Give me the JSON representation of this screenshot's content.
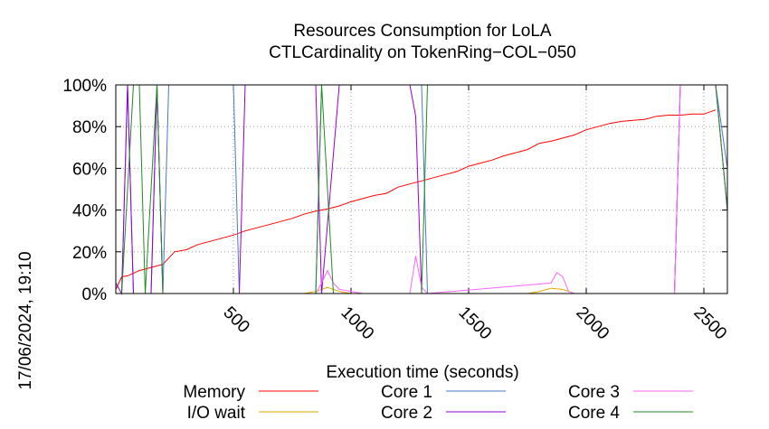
{
  "chart_data": {
    "type": "line",
    "title": "Resources Consumption for LoLA",
    "subtitle": "CTLCardinality on TokenRing−COL−050",
    "xlabel": "Execution time (seconds)",
    "ylabel": "",
    "side_label": "17/06/2024, 19:10",
    "xlim": [
      0,
      2600
    ],
    "ylim": [
      0,
      100
    ],
    "x_ticks": [
      500,
      1000,
      1500,
      2000,
      2500
    ],
    "y_ticks": [
      0,
      20,
      40,
      60,
      80,
      100
    ],
    "y_tick_labels": [
      "0%",
      "20%",
      "40%",
      "60%",
      "80%",
      "100%"
    ],
    "grid": true,
    "legend_position": "bottom",
    "series": [
      {
        "name": "Memory",
        "color": "#ff0000",
        "points": [
          [
            0,
            2
          ],
          [
            25,
            8
          ],
          [
            50,
            8.5
          ],
          [
            100,
            11
          ],
          [
            150,
            12.5
          ],
          [
            200,
            14
          ],
          [
            250,
            20
          ],
          [
            300,
            21
          ],
          [
            350,
            23.5
          ],
          [
            400,
            25
          ],
          [
            450,
            26.5
          ],
          [
            500,
            28
          ],
          [
            550,
            30
          ],
          [
            600,
            31.5
          ],
          [
            650,
            33
          ],
          [
            700,
            34.5
          ],
          [
            750,
            36
          ],
          [
            800,
            38
          ],
          [
            850,
            39.5
          ],
          [
            900,
            40.5
          ],
          [
            950,
            42
          ],
          [
            1000,
            44
          ],
          [
            1050,
            45.5
          ],
          [
            1100,
            47
          ],
          [
            1150,
            48
          ],
          [
            1200,
            51
          ],
          [
            1250,
            52.5
          ],
          [
            1300,
            54
          ],
          [
            1350,
            55.5
          ],
          [
            1400,
            57
          ],
          [
            1450,
            58.5
          ],
          [
            1500,
            61
          ],
          [
            1550,
            62.5
          ],
          [
            1600,
            64
          ],
          [
            1650,
            66
          ],
          [
            1700,
            67.5
          ],
          [
            1750,
            69
          ],
          [
            1800,
            72
          ],
          [
            1850,
            73
          ],
          [
            1900,
            74.5
          ],
          [
            1950,
            76
          ],
          [
            2000,
            78.5
          ],
          [
            2050,
            80
          ],
          [
            2100,
            81.5
          ],
          [
            2150,
            82.5
          ],
          [
            2200,
            83
          ],
          [
            2250,
            83.5
          ],
          [
            2300,
            85
          ],
          [
            2350,
            85.5
          ],
          [
            2400,
            85.5
          ],
          [
            2450,
            86
          ],
          [
            2500,
            86
          ],
          [
            2550,
            88
          ]
        ]
      },
      {
        "name": "I/O wait",
        "color": "#e6a800",
        "points": [
          [
            0,
            0
          ],
          [
            800,
            0
          ],
          [
            850,
            1
          ],
          [
            900,
            3
          ],
          [
            950,
            1
          ],
          [
            1000,
            0
          ],
          [
            1750,
            0
          ],
          [
            1800,
            1
          ],
          [
            1850,
            2.5
          ],
          [
            1900,
            2
          ],
          [
            1950,
            0
          ],
          [
            2600,
            0
          ]
        ]
      },
      {
        "name": "Core 1",
        "color": "#4a78c8",
        "points": [
          [
            0,
            0
          ],
          [
            25,
            0
          ],
          [
            50,
            100
          ],
          [
            75,
            0
          ],
          [
            150,
            0
          ],
          [
            175,
            100
          ],
          [
            200,
            0
          ],
          [
            225,
            100
          ],
          [
            500,
            100
          ],
          [
            525,
            0
          ],
          [
            850,
            0
          ],
          [
            875,
            100
          ],
          [
            1250,
            100
          ],
          [
            1275,
            100
          ],
          [
            1300,
            100
          ],
          [
            1325,
            0
          ],
          [
            2375,
            0
          ],
          [
            2400,
            100
          ],
          [
            2550,
            100
          ],
          [
            2600,
            60
          ]
        ]
      },
      {
        "name": "Core 2",
        "color": "#9400d3",
        "points": [
          [
            0,
            5
          ],
          [
            25,
            0
          ],
          [
            50,
            100
          ],
          [
            75,
            0
          ],
          [
            150,
            0
          ],
          [
            175,
            100
          ],
          [
            200,
            0
          ],
          [
            525,
            0
          ],
          [
            550,
            100
          ],
          [
            850,
            100
          ],
          [
            875,
            0
          ],
          [
            950,
            100
          ],
          [
            1150,
            100
          ],
          [
            1250,
            100
          ],
          [
            1275,
            85
          ],
          [
            1300,
            0
          ],
          [
            2375,
            0
          ],
          [
            2400,
            100
          ],
          [
            2550,
            100
          ],
          [
            2600,
            40
          ]
        ]
      },
      {
        "name": "Core 3",
        "color": "#ff66ff",
        "points": [
          [
            0,
            0
          ],
          [
            50,
            0
          ],
          [
            75,
            0
          ],
          [
            850,
            0
          ],
          [
            875,
            5
          ],
          [
            900,
            11
          ],
          [
            925,
            5
          ],
          [
            950,
            2
          ],
          [
            1000,
            1
          ],
          [
            1050,
            0
          ],
          [
            1250,
            0
          ],
          [
            1275,
            18
          ],
          [
            1300,
            3
          ],
          [
            1325,
            0
          ],
          [
            1850,
            5
          ],
          [
            1875,
            10
          ],
          [
            1900,
            8
          ],
          [
            1925,
            1
          ],
          [
            1950,
            0
          ],
          [
            2375,
            0
          ],
          [
            2400,
            100
          ],
          [
            2550,
            100
          ],
          [
            2600,
            40
          ]
        ]
      },
      {
        "name": "Core 4",
        "color": "#228b22",
        "points": [
          [
            0,
            0
          ],
          [
            25,
            0
          ],
          [
            75,
            100
          ],
          [
            100,
            100
          ],
          [
            125,
            0
          ],
          [
            175,
            100
          ],
          [
            200,
            0
          ],
          [
            225,
            0
          ],
          [
            850,
            0
          ],
          [
            875,
            100
          ],
          [
            925,
            0
          ],
          [
            1300,
            0
          ],
          [
            1325,
            100
          ],
          [
            2550,
            100
          ],
          [
            2600,
            40
          ]
        ]
      }
    ]
  }
}
